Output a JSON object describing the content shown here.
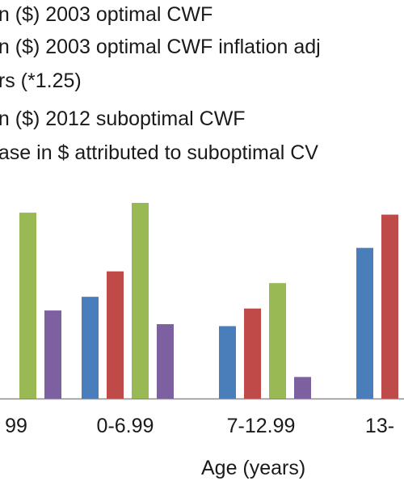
{
  "chart_data": {
    "type": "bar",
    "legend": {
      "placement": "top",
      "lines": [
        "an ($) 2003 optimal CWF",
        "an ($) 2003 optimal CWF inflation adj",
        "ars (*1.25)",
        "an ($) 2012 suboptimal CWF",
        "ease in $ attributed to suboptimal CV"
      ]
    },
    "categories": [
      "99",
      "0-6.99",
      "7-12.99",
      "13-"
    ],
    "xlabel": "Age (years)",
    "ylim": [
      0,
      100
    ],
    "grid": false,
    "series": [
      {
        "color": "#4a7ebb",
        "values": [
          null,
          52,
          37,
          77
        ]
      },
      {
        "color": "#be4b48",
        "values": [
          null,
          65,
          46,
          94
        ]
      },
      {
        "color": "#98b954",
        "values": [
          95,
          100,
          59,
          null
        ]
      },
      {
        "color": "#7d60a0",
        "values": [
          45,
          38,
          11,
          null
        ]
      }
    ]
  }
}
